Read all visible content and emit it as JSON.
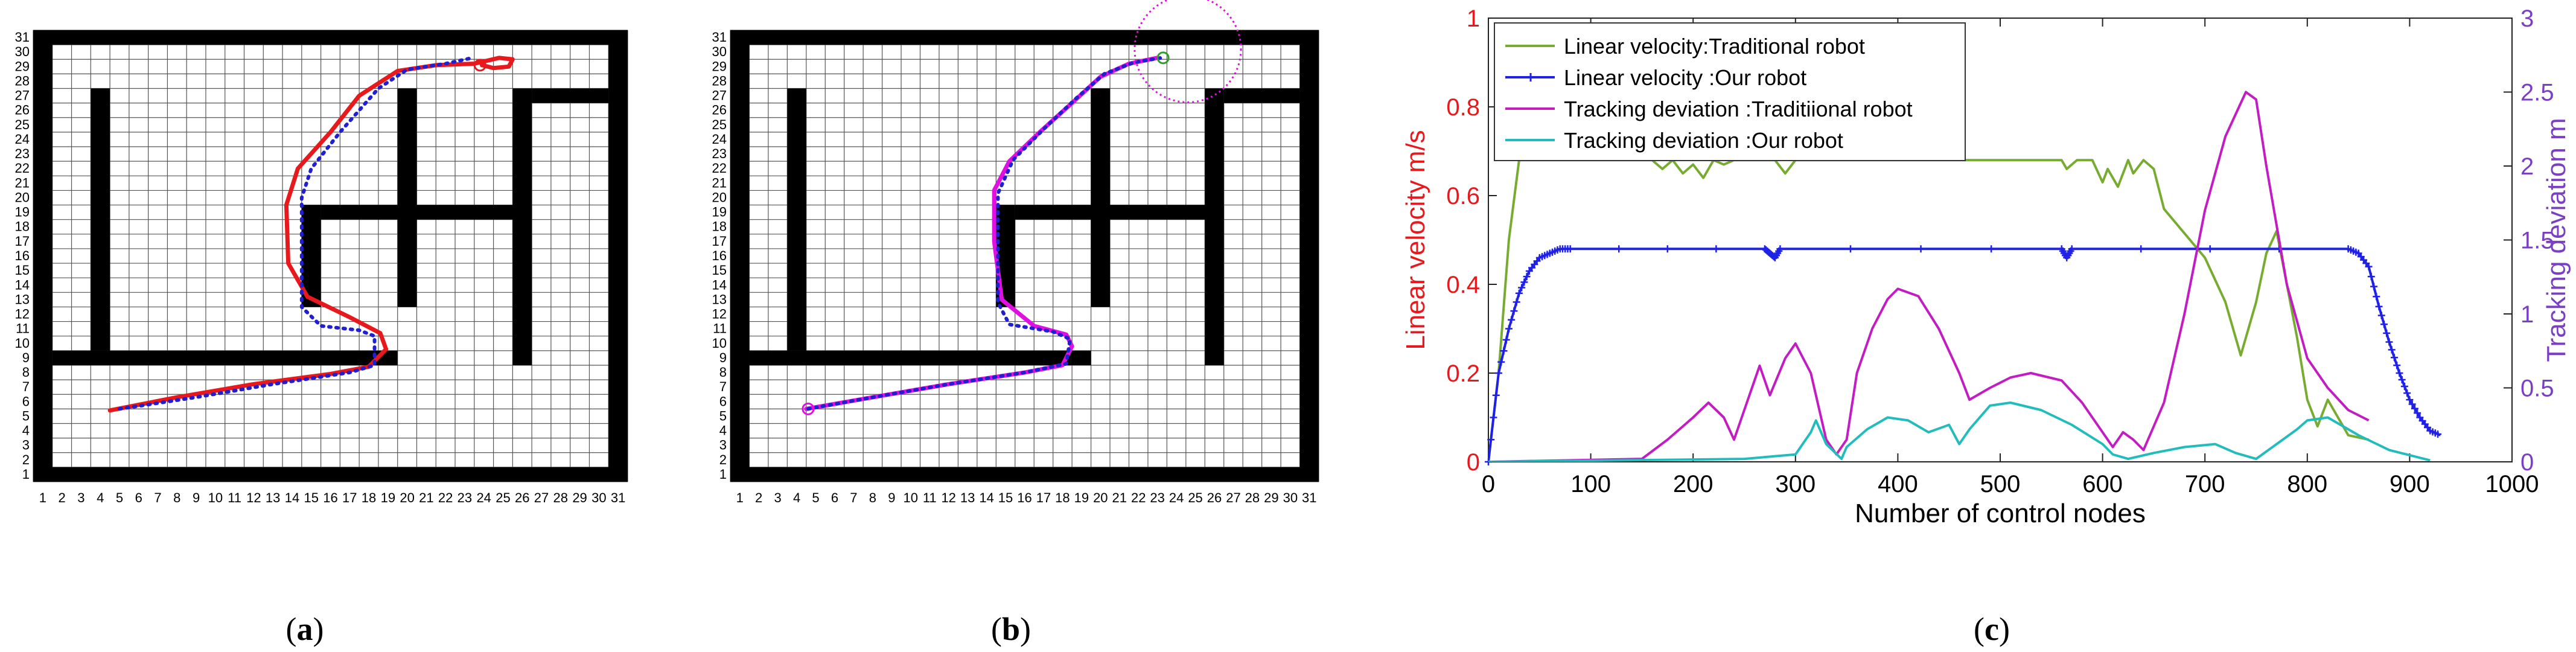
{
  "panels": [
    {
      "id": "a",
      "paren_open": "(",
      "letter": "a",
      "paren_close": ")"
    },
    {
      "id": "b",
      "paren_open": "(",
      "letter": "b",
      "paren_close": ")"
    },
    {
      "id": "c",
      "paren_open": "(",
      "letter": "c",
      "paren_close": ")"
    }
  ],
  "chart_data": [
    {
      "type": "scatter",
      "panel": "a",
      "title": "",
      "grid": true,
      "x_ticks": [
        1,
        2,
        3,
        4,
        5,
        6,
        7,
        8,
        9,
        10,
        11,
        12,
        13,
        14,
        15,
        16,
        17,
        18,
        19,
        20,
        21,
        22,
        23,
        24,
        25,
        26,
        27,
        28,
        29,
        30,
        31
      ],
      "y_ticks": [
        1,
        2,
        3,
        4,
        5,
        6,
        7,
        8,
        9,
        10,
        11,
        12,
        13,
        14,
        15,
        16,
        17,
        18,
        19,
        20,
        21,
        22,
        23,
        24,
        25,
        26,
        27,
        28,
        29,
        30,
        31
      ],
      "xlim": [
        1,
        31
      ],
      "ylim": [
        1,
        31
      ],
      "series": [
        {
          "color": "#e8191c",
          "style": "solid",
          "x": [
            4.5,
            8,
            12,
            16,
            18,
            18.9,
            18.6,
            17,
            14.8,
            13.8,
            13.7,
            14.3,
            16,
            17.5,
            19.5,
            21.5,
            23.5,
            24.8,
            25.5,
            25.3,
            24.5,
            23.9
          ],
          "y": [
            5.4,
            6.3,
            7.2,
            7.9,
            8.4,
            9.6,
            10.7,
            11.8,
            13.2,
            15.5,
            19.5,
            22,
            24.5,
            27,
            28.7,
            29.1,
            29.2,
            29.6,
            29.5,
            29.0,
            28.9,
            29.1
          ]
        },
        {
          "color": "#2020d0",
          "style": "dotted",
          "x": [
            5,
            9,
            13,
            17,
            18.3,
            18.3,
            17.5,
            15.5,
            14.5,
            14.5,
            15,
            16.5,
            18.5,
            20,
            22,
            23.4
          ],
          "y": [
            5.5,
            6.3,
            7.2,
            8,
            8.5,
            10.5,
            10.9,
            11.2,
            12.5,
            20,
            22,
            24.5,
            27.5,
            28.8,
            29.2,
            29.6
          ]
        }
      ],
      "markers": [
        {
          "x": 23.8,
          "y": 29.1,
          "shape": "circle",
          "color": "#e8191c"
        }
      ]
    },
    {
      "type": "scatter",
      "panel": "b",
      "title": "",
      "grid": true,
      "x_ticks": [
        1,
        2,
        3,
        4,
        5,
        6,
        7,
        8,
        9,
        10,
        11,
        12,
        13,
        14,
        15,
        16,
        17,
        18,
        19,
        20,
        21,
        22,
        23,
        24,
        25,
        26,
        27,
        28,
        29,
        30,
        31
      ],
      "y_ticks": [
        1,
        2,
        3,
        4,
        5,
        6,
        7,
        8,
        9,
        10,
        11,
        12,
        13,
        14,
        15,
        16,
        17,
        18,
        19,
        20,
        21,
        22,
        23,
        24,
        25,
        26,
        27,
        28,
        29,
        30,
        31
      ],
      "xlim": [
        1,
        31
      ],
      "ylim": [
        1,
        31
      ],
      "series": [
        {
          "color": "#e010e0",
          "style": "solid",
          "x": [
            4.5,
            8,
            12,
            16,
            18,
            18.5,
            18.2,
            16.5,
            14.8,
            14.4,
            14.4,
            15.2,
            16.8,
            18.5,
            20,
            21.5,
            23
          ],
          "y": [
            5.5,
            6.3,
            7.2,
            8,
            8.5,
            9.8,
            10.6,
            11.2,
            13,
            17,
            20.5,
            22.5,
            24.5,
            26.5,
            28.3,
            29.2,
            29.6
          ]
        },
        {
          "color": "#2020d0",
          "style": "dotted",
          "x": [
            4.6,
            8,
            12,
            16,
            18.2,
            18.4,
            17.5,
            15.2,
            14.6,
            14.6,
            15.4,
            17,
            18.7,
            20.2,
            21.8,
            23.2
          ],
          "y": [
            5.5,
            6.3,
            7.2,
            8,
            8.6,
            10.3,
            10.8,
            11.3,
            12.8,
            20.3,
            22.6,
            24.7,
            26.8,
            28.5,
            29.3,
            29.6
          ]
        }
      ],
      "markers": [
        {
          "x": 23.3,
          "y": 29.6,
          "shape": "circle",
          "color": "#2e9e2e"
        },
        {
          "x": 4.6,
          "y": 5.5,
          "shape": "circle",
          "color": "#e010e0"
        }
      ],
      "annotations": [
        {
          "type": "dashed-circle",
          "x": 24.6,
          "y": 30.2,
          "r": 2.8,
          "color": "#e010e0"
        }
      ]
    },
    {
      "type": "line",
      "panel": "c",
      "title": "",
      "xlabel": "Number of control nodes",
      "ylabel": "Linear velocity m/s",
      "ylabel_right": "Tracking deviation m",
      "xlim": [
        0,
        1000
      ],
      "ylim": [
        0,
        1
      ],
      "ylim_right": [
        0,
        3
      ],
      "x_ticks": [
        0,
        100,
        200,
        300,
        400,
        500,
        600,
        700,
        800,
        900,
        1000
      ],
      "y_ticks": [
        0,
        0.2,
        0.4,
        0.6,
        0.8,
        1
      ],
      "y_ticks_right": [
        0,
        0.5,
        1,
        1.5,
        2,
        2.5,
        3
      ],
      "x_tick_labels": [
        "0",
        "100",
        "200",
        "300",
        "400",
        "500",
        "600",
        "700",
        "800",
        "900",
        "1000"
      ],
      "y_tick_labels": [
        "0",
        "0.2",
        "0.4",
        "0.6",
        "0.8",
        "1"
      ],
      "y_tick_labels_right": [
        "0",
        "0.5",
        "1",
        "1.5",
        "2",
        "2.5",
        "3"
      ],
      "grid": false,
      "legend_position": "top-left",
      "series": [
        {
          "name": "Linear velocity:Traditional robot",
          "axis": "left",
          "color": "#77ac30",
          "marker": "none",
          "x": [
            0,
            10,
            20,
            30,
            160,
            170,
            180,
            190,
            200,
            210,
            220,
            230,
            240,
            260,
            280,
            290,
            300,
            320,
            330,
            560,
            565,
            575,
            590,
            600,
            605,
            615,
            625,
            630,
            640,
            650,
            660,
            700,
            720,
            735,
            750,
            760,
            770,
            780,
            790,
            800,
            810,
            820,
            840,
            860
          ],
          "y": [
            0,
            0.2,
            0.5,
            0.68,
            0.68,
            0.66,
            0.68,
            0.65,
            0.67,
            0.64,
            0.68,
            0.67,
            0.68,
            0.68,
            0.68,
            0.65,
            0.68,
            0.68,
            0.68,
            0.68,
            0.66,
            0.68,
            0.68,
            0.63,
            0.66,
            0.62,
            0.68,
            0.65,
            0.68,
            0.66,
            0.57,
            0.46,
            0.36,
            0.24,
            0.36,
            0.47,
            0.52,
            0.4,
            0.28,
            0.14,
            0.08,
            0.14,
            0.06,
            0.05
          ]
        },
        {
          "name": "Linear velocity :Our robot",
          "axis": "left",
          "color": "#1f22e6",
          "marker": "plus",
          "x": [
            0,
            10,
            20,
            30,
            40,
            50,
            60,
            70,
            80,
            270,
            275,
            280,
            285,
            560,
            565,
            570,
            840,
            850,
            860,
            870,
            880,
            890,
            900,
            910,
            920,
            930
          ],
          "y": [
            0,
            0.2,
            0.3,
            0.38,
            0.43,
            0.46,
            0.47,
            0.48,
            0.48,
            0.48,
            0.47,
            0.46,
            0.48,
            0.48,
            0.46,
            0.48,
            0.48,
            0.47,
            0.44,
            0.35,
            0.27,
            0.2,
            0.14,
            0.1,
            0.07,
            0.06
          ]
        },
        {
          "name": "Tracking deviation :Traditiional robot",
          "axis": "right",
          "color": "#c21cc2",
          "marker": "none",
          "x": [
            0,
            150,
            175,
            200,
            215,
            230,
            240,
            255,
            265,
            275,
            290,
            300,
            315,
            330,
            340,
            350,
            360,
            375,
            390,
            400,
            420,
            440,
            460,
            470,
            490,
            510,
            530,
            560,
            580,
            600,
            610,
            620,
            630,
            640,
            660,
            680,
            700,
            720,
            740,
            750,
            760,
            780,
            800,
            820,
            840,
            860
          ],
          "y": [
            0,
            0.02,
            0.15,
            0.3,
            0.4,
            0.3,
            0.15,
            0.45,
            0.65,
            0.45,
            0.7,
            0.8,
            0.6,
            0.15,
            0.05,
            0.15,
            0.6,
            0.9,
            1.1,
            1.17,
            1.12,
            0.9,
            0.6,
            0.42,
            0.5,
            0.57,
            0.6,
            0.55,
            0.4,
            0.2,
            0.1,
            0.2,
            0.15,
            0.08,
            0.4,
            1.0,
            1.7,
            2.2,
            2.5,
            2.45,
            2.0,
            1.2,
            0.7,
            0.5,
            0.35,
            0.28
          ]
        },
        {
          "name": "Tracking deviation :Our robot",
          "axis": "right",
          "color": "#23bcbc",
          "marker": "none",
          "x": [
            0,
            250,
            300,
            315,
            320,
            330,
            345,
            350,
            370,
            390,
            410,
            430,
            450,
            460,
            470,
            490,
            510,
            540,
            570,
            600,
            610,
            625,
            650,
            680,
            710,
            730,
            750,
            770,
            790,
            800,
            820,
            850,
            880,
            920
          ],
          "y": [
            0,
            0.02,
            0.05,
            0.2,
            0.28,
            0.12,
            0.02,
            0.1,
            0.22,
            0.3,
            0.28,
            0.2,
            0.25,
            0.12,
            0.22,
            0.38,
            0.4,
            0.35,
            0.25,
            0.12,
            0.05,
            0.02,
            0.06,
            0.1,
            0.12,
            0.06,
            0.02,
            0.12,
            0.22,
            0.28,
            0.3,
            0.18,
            0.08,
            0.01
          ]
        }
      ]
    }
  ]
}
